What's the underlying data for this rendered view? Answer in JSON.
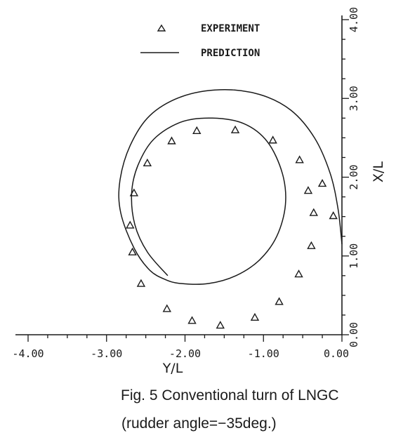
{
  "chart_data": {
    "type": "scatter",
    "xlabel": "Y/L",
    "ylabel": "X/L",
    "xlim": [
      -4.0,
      0.0
    ],
    "ylim": [
      0.0,
      4.0
    ],
    "x_ticks": [
      -4.0,
      -3.0,
      -2.0,
      -1.0,
      0.0
    ],
    "y_ticks": [
      0.0,
      1.0,
      2.0,
      3.0,
      4.0
    ],
    "x_tick_labels": [
      "-4.00",
      "-3.00",
      "-2.00",
      "-1.00",
      "0.00"
    ],
    "y_tick_labels": [
      "0.00",
      "1.00",
      "2.00",
      "3.00",
      "4.00"
    ],
    "legend_position": "top-left",
    "grid": false,
    "series": [
      {
        "name": "EXPERIMENT",
        "kind": "markers",
        "marker": "triangle",
        "points": [
          [
            -0.11,
            1.51
          ],
          [
            -0.25,
            1.92
          ],
          [
            -0.36,
            1.55
          ],
          [
            -0.43,
            1.83
          ],
          [
            -0.39,
            1.13
          ],
          [
            -0.54,
            2.22
          ],
          [
            -0.55,
            0.77
          ],
          [
            -0.8,
            0.42
          ],
          [
            -0.88,
            2.47
          ],
          [
            -1.11,
            0.22
          ],
          [
            -1.36,
            2.6
          ],
          [
            -1.55,
            0.12
          ],
          [
            -1.85,
            2.59
          ],
          [
            -1.91,
            0.18
          ],
          [
            -2.17,
            2.46
          ],
          [
            -2.23,
            0.33
          ],
          [
            -2.48,
            2.18
          ],
          [
            -2.56,
            0.65
          ],
          [
            -2.65,
            1.8
          ],
          [
            -2.67,
            1.05
          ],
          [
            -2.7,
            1.39
          ]
        ]
      },
      {
        "name": "PREDICTION",
        "kind": "line",
        "points": [
          [
            0.0,
            1.15
          ],
          [
            -0.05,
            1.6
          ],
          [
            -0.15,
            2.05
          ],
          [
            -0.35,
            2.5
          ],
          [
            -0.65,
            2.85
          ],
          [
            -1.05,
            3.05
          ],
          [
            -1.55,
            3.11
          ],
          [
            -2.05,
            3.02
          ],
          [
            -2.45,
            2.78
          ],
          [
            -2.7,
            2.4
          ],
          [
            -2.83,
            1.95
          ],
          [
            -2.82,
            1.55
          ],
          [
            -2.65,
            1.1
          ],
          [
            -2.45,
            0.82
          ],
          [
            -2.25,
            0.7
          ],
          [
            -2.05,
            0.65
          ],
          [
            -1.7,
            0.65
          ],
          [
            -1.35,
            0.75
          ],
          [
            -1.05,
            0.95
          ],
          [
            -0.83,
            1.25
          ],
          [
            -0.72,
            1.65
          ],
          [
            -0.76,
            2.05
          ],
          [
            -0.95,
            2.45
          ],
          [
            -1.25,
            2.68
          ],
          [
            -1.65,
            2.75
          ],
          [
            -2.05,
            2.7
          ],
          [
            -2.4,
            2.48
          ],
          [
            -2.6,
            2.15
          ],
          [
            -2.68,
            1.8
          ],
          [
            -2.64,
            1.4
          ],
          [
            -2.48,
            1.05
          ],
          [
            -2.22,
            0.75
          ]
        ]
      }
    ]
  },
  "caption": {
    "line1": "Fig. 5 Conventional turn of LNGC",
    "line2": "(rudder angle=−35deg.)"
  }
}
